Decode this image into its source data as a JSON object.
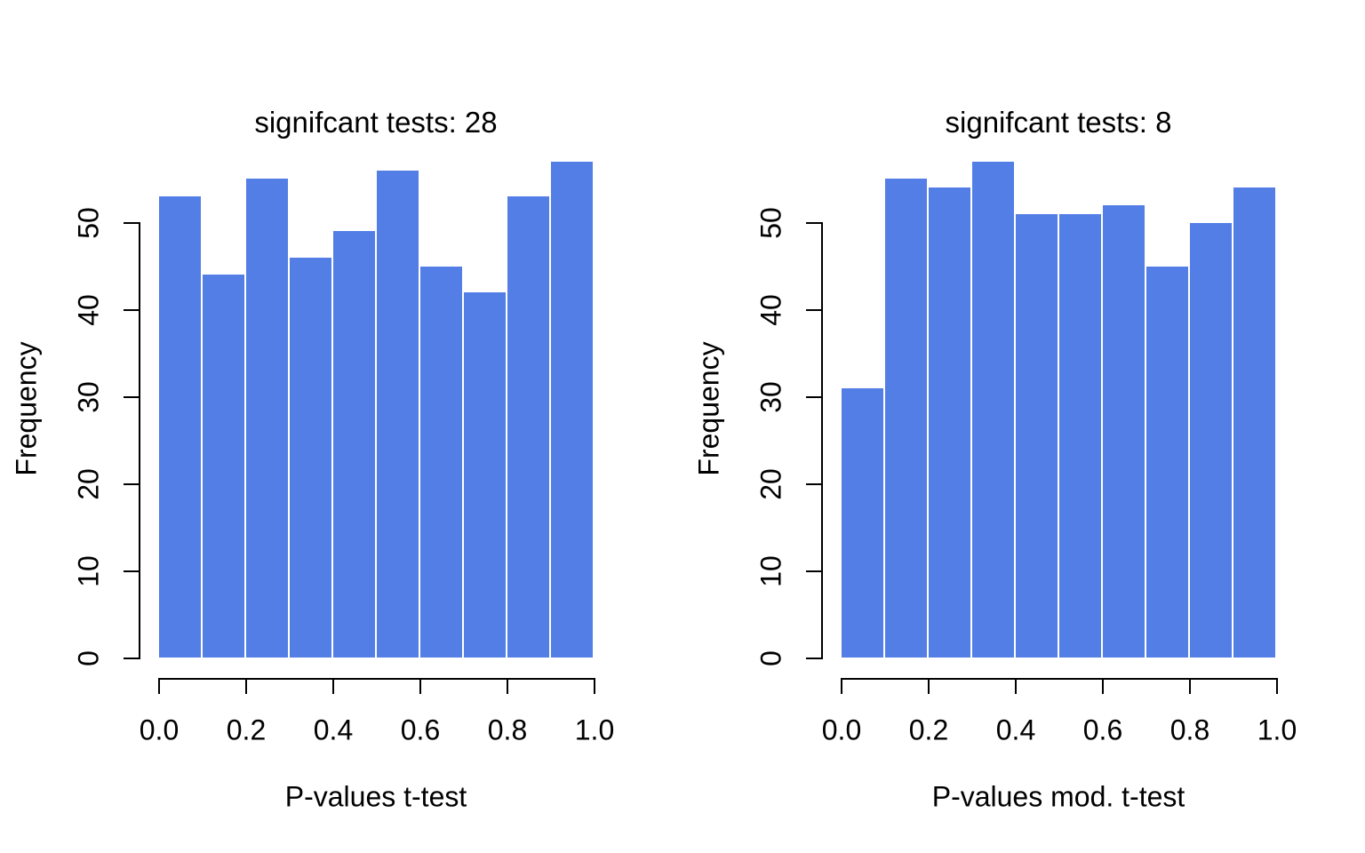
{
  "figure": {
    "background": "#ffffff",
    "text_color": "#000000",
    "axis_color": "#000000",
    "bar_fill": "#537EE6",
    "bar_border": "#ffffff"
  },
  "chart_data": [
    {
      "type": "bar",
      "chart_kind": "histogram",
      "title": "signifcant tests: 28",
      "xlabel": "P-values t-test",
      "ylabel": "Frequency",
      "bin_start": 0,
      "bin_width": 0.1,
      "categories": [
        "0.0-0.1",
        "0.1-0.2",
        "0.2-0.3",
        "0.3-0.4",
        "0.4-0.5",
        "0.5-0.6",
        "0.6-0.7",
        "0.7-0.8",
        "0.8-0.9",
        "0.9-1.0"
      ],
      "values": [
        53,
        44,
        55,
        46,
        49,
        56,
        45,
        42,
        53,
        57
      ],
      "xlim": [
        0,
        1
      ],
      "ylim": [
        0,
        57
      ],
      "x_tick_values": [
        0,
        0.2,
        0.4,
        0.6,
        0.8,
        1.0
      ],
      "x_tick_labels": [
        "0.0",
        "0.2",
        "0.4",
        "0.6",
        "0.8",
        "1.0"
      ],
      "y_tick_values": [
        0,
        10,
        20,
        30,
        40,
        50
      ],
      "y_tick_labels": [
        "0",
        "10",
        "20",
        "30",
        "40",
        "50"
      ],
      "grid": false,
      "legend": null
    },
    {
      "type": "bar",
      "chart_kind": "histogram",
      "title": "signifcant tests: 8",
      "xlabel": "P-values mod. t-test",
      "ylabel": "Frequency",
      "bin_start": 0,
      "bin_width": 0.1,
      "categories": [
        "0.0-0.1",
        "0.1-0.2",
        "0.2-0.3",
        "0.3-0.4",
        "0.4-0.5",
        "0.5-0.6",
        "0.6-0.7",
        "0.7-0.8",
        "0.8-0.9",
        "0.9-1.0"
      ],
      "values": [
        31,
        55,
        54,
        57,
        51,
        51,
        52,
        45,
        50,
        54
      ],
      "xlim": [
        0,
        1
      ],
      "ylim": [
        0,
        57
      ],
      "x_tick_values": [
        0,
        0.2,
        0.4,
        0.6,
        0.8,
        1.0
      ],
      "x_tick_labels": [
        "0.0",
        "0.2",
        "0.4",
        "0.6",
        "0.8",
        "1.0"
      ],
      "y_tick_values": [
        0,
        10,
        20,
        30,
        40,
        50
      ],
      "y_tick_labels": [
        "0",
        "10",
        "20",
        "30",
        "40",
        "50"
      ],
      "grid": false,
      "legend": null
    }
  ]
}
